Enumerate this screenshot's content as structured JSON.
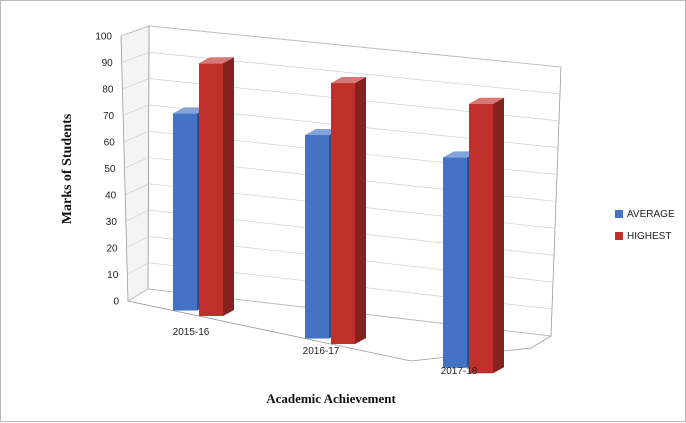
{
  "chart_data": {
    "type": "bar",
    "style": "3d-clustered-column",
    "title": "",
    "xlabel": "Academic Achievement",
    "ylabel": "Marks of Students",
    "ylim": [
      0,
      100
    ],
    "yticks": [
      "0",
      "10",
      "20",
      "30",
      "40",
      "50",
      "60",
      "70",
      "80",
      "90",
      "100"
    ],
    "grid": true,
    "legend_position": "right",
    "categories": [
      "2015-16",
      "2016-17",
      "2017-18"
    ],
    "series": [
      {
        "name": "AVERAGE",
        "color": "#4472C4",
        "values": [
          73,
          73,
          73
        ]
      },
      {
        "name": "HIGHEST",
        "color": "#C0302B",
        "values": [
          93,
          93,
          93
        ]
      }
    ]
  }
}
